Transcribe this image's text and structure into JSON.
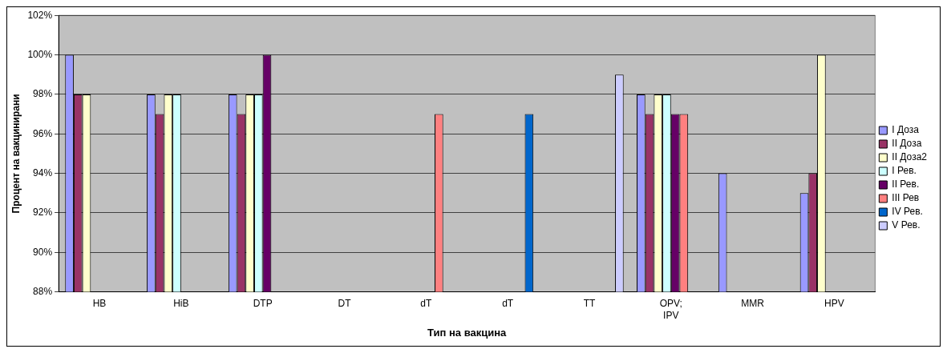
{
  "chart_data": {
    "type": "bar",
    "xlabel": "Тип на вакцина",
    "ylabel": "Процент на вакцинирани",
    "categories": [
      "HB",
      "HiB",
      "DTP",
      "DT",
      "dT",
      "dT",
      "TT",
      "OPV; IPV",
      "MMR",
      "HPV"
    ],
    "series": [
      {
        "name": "I Доза",
        "color": "#9999ff",
        "values": [
          100,
          98,
          98,
          null,
          null,
          null,
          null,
          98,
          94,
          93
        ]
      },
      {
        "name": "II Доза",
        "color": "#993366",
        "values": [
          98,
          97,
          97,
          null,
          null,
          null,
          null,
          97,
          null,
          94
        ]
      },
      {
        "name": "II Доза2",
        "color": "#ffffcc",
        "values": [
          98,
          98,
          98,
          null,
          null,
          null,
          null,
          98,
          null,
          100
        ]
      },
      {
        "name": "I Рев.",
        "color": "#ccffff",
        "values": [
          null,
          98,
          98,
          null,
          null,
          null,
          null,
          98,
          null,
          null
        ]
      },
      {
        "name": "II Рев.",
        "color": "#660066",
        "values": [
          null,
          null,
          100,
          null,
          null,
          null,
          null,
          97,
          null,
          null
        ]
      },
      {
        "name": "III Рев",
        "color": "#ff8080",
        "values": [
          null,
          null,
          null,
          null,
          97,
          null,
          null,
          97,
          null,
          null
        ]
      },
      {
        "name": "IV Рев.",
        "color": "#0066cc",
        "values": [
          null,
          null,
          null,
          null,
          null,
          97,
          null,
          null,
          null,
          null
        ]
      },
      {
        "name": "V Рев.",
        "color": "#ccccff",
        "values": [
          null,
          null,
          null,
          null,
          null,
          null,
          99,
          null,
          null,
          null
        ]
      }
    ],
    "ylim": [
      88,
      102
    ],
    "yticks": [
      {
        "value": 88,
        "label": "88%"
      },
      {
        "value": 90,
        "label": "90%"
      },
      {
        "value": 92,
        "label": "92%"
      },
      {
        "value": 94,
        "label": "94%"
      },
      {
        "value": 96,
        "label": "96%"
      },
      {
        "value": 98,
        "label": "98%"
      },
      {
        "value": 100,
        "label": "100%"
      },
      {
        "value": 102,
        "label": "102%"
      }
    ],
    "grid": "y",
    "legend": "right"
  }
}
